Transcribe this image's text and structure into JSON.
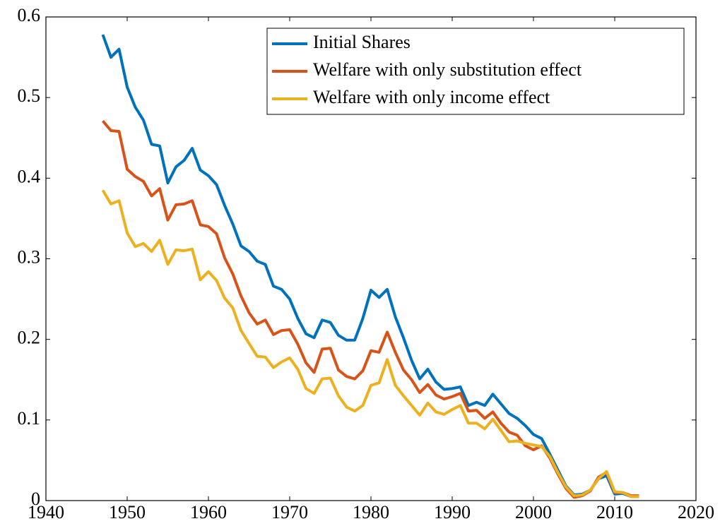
{
  "chart_data": {
    "type": "line",
    "x": [
      1947,
      1948,
      1949,
      1950,
      1951,
      1952,
      1953,
      1954,
      1955,
      1956,
      1957,
      1958,
      1959,
      1960,
      1961,
      1962,
      1963,
      1964,
      1965,
      1966,
      1967,
      1968,
      1969,
      1970,
      1971,
      1972,
      1973,
      1974,
      1975,
      1976,
      1977,
      1978,
      1979,
      1980,
      1981,
      1982,
      1983,
      1984,
      1985,
      1986,
      1987,
      1988,
      1989,
      1990,
      1991,
      1992,
      1993,
      1994,
      1995,
      1996,
      1997,
      1998,
      1999,
      2000,
      2001,
      2002,
      2003,
      2004,
      2005,
      2006,
      2007,
      2008,
      2009,
      2010,
      2011,
      2012,
      2013
    ],
    "series": [
      {
        "name": "Initial Shares",
        "color": "#0072bd",
        "values": [
          0.578,
          0.55,
          0.56,
          0.513,
          0.488,
          0.472,
          0.442,
          0.44,
          0.394,
          0.414,
          0.422,
          0.437,
          0.41,
          0.403,
          0.392,
          0.366,
          0.343,
          0.316,
          0.309,
          0.297,
          0.293,
          0.266,
          0.262,
          0.25,
          0.226,
          0.207,
          0.202,
          0.224,
          0.221,
          0.205,
          0.199,
          0.199,
          0.226,
          0.261,
          0.252,
          0.262,
          0.228,
          0.202,
          0.174,
          0.151,
          0.163,
          0.147,
          0.138,
          0.139,
          0.141,
          0.118,
          0.122,
          0.118,
          0.132,
          0.12,
          0.108,
          0.102,
          0.093,
          0.082,
          0.077,
          0.058,
          0.038,
          0.018,
          0.007,
          0.008,
          0.013,
          0.027,
          0.031,
          0.008,
          0.009,
          0.005,
          0.005
        ]
      },
      {
        "name": "Welfare with only substitution effect",
        "color": "#d95319",
        "values": [
          0.471,
          0.459,
          0.458,
          0.411,
          0.402,
          0.396,
          0.378,
          0.387,
          0.348,
          0.367,
          0.368,
          0.372,
          0.342,
          0.34,
          0.331,
          0.301,
          0.281,
          0.254,
          0.233,
          0.219,
          0.224,
          0.206,
          0.211,
          0.212,
          0.194,
          0.171,
          0.159,
          0.188,
          0.189,
          0.162,
          0.154,
          0.151,
          0.161,
          0.186,
          0.184,
          0.209,
          0.184,
          0.162,
          0.15,
          0.134,
          0.144,
          0.131,
          0.126,
          0.129,
          0.133,
          0.111,
          0.112,
          0.102,
          0.11,
          0.096,
          0.085,
          0.081,
          0.068,
          0.063,
          0.068,
          0.053,
          0.033,
          0.015,
          0.004,
          0.006,
          0.012,
          0.029,
          0.035,
          0.01,
          0.01,
          0.006,
          0.006
        ]
      },
      {
        "name": "Welfare with only income effect",
        "color": "#edb120",
        "values": [
          0.385,
          0.368,
          0.372,
          0.332,
          0.315,
          0.319,
          0.309,
          0.323,
          0.293,
          0.311,
          0.31,
          0.312,
          0.274,
          0.284,
          0.273,
          0.251,
          0.239,
          0.211,
          0.195,
          0.179,
          0.178,
          0.165,
          0.172,
          0.177,
          0.163,
          0.139,
          0.133,
          0.151,
          0.152,
          0.13,
          0.116,
          0.111,
          0.118,
          0.143,
          0.146,
          0.175,
          0.143,
          0.13,
          0.118,
          0.106,
          0.121,
          0.11,
          0.107,
          0.113,
          0.118,
          0.096,
          0.096,
          0.089,
          0.101,
          0.087,
          0.073,
          0.074,
          0.071,
          0.069,
          0.067,
          0.055,
          0.035,
          0.017,
          0.006,
          0.007,
          0.013,
          0.027,
          0.036,
          0.011,
          0.01,
          0.005,
          0.005
        ]
      }
    ],
    "xlim": [
      1940,
      2020
    ],
    "xticks": [
      1940,
      1950,
      1960,
      1970,
      1980,
      1990,
      2000,
      2010,
      2020
    ],
    "ylim": [
      0,
      0.6
    ],
    "yticks": [
      0,
      0.1,
      0.2,
      0.3,
      0.4,
      0.5,
      0.6
    ],
    "legend": "upper right",
    "grid": false
  }
}
